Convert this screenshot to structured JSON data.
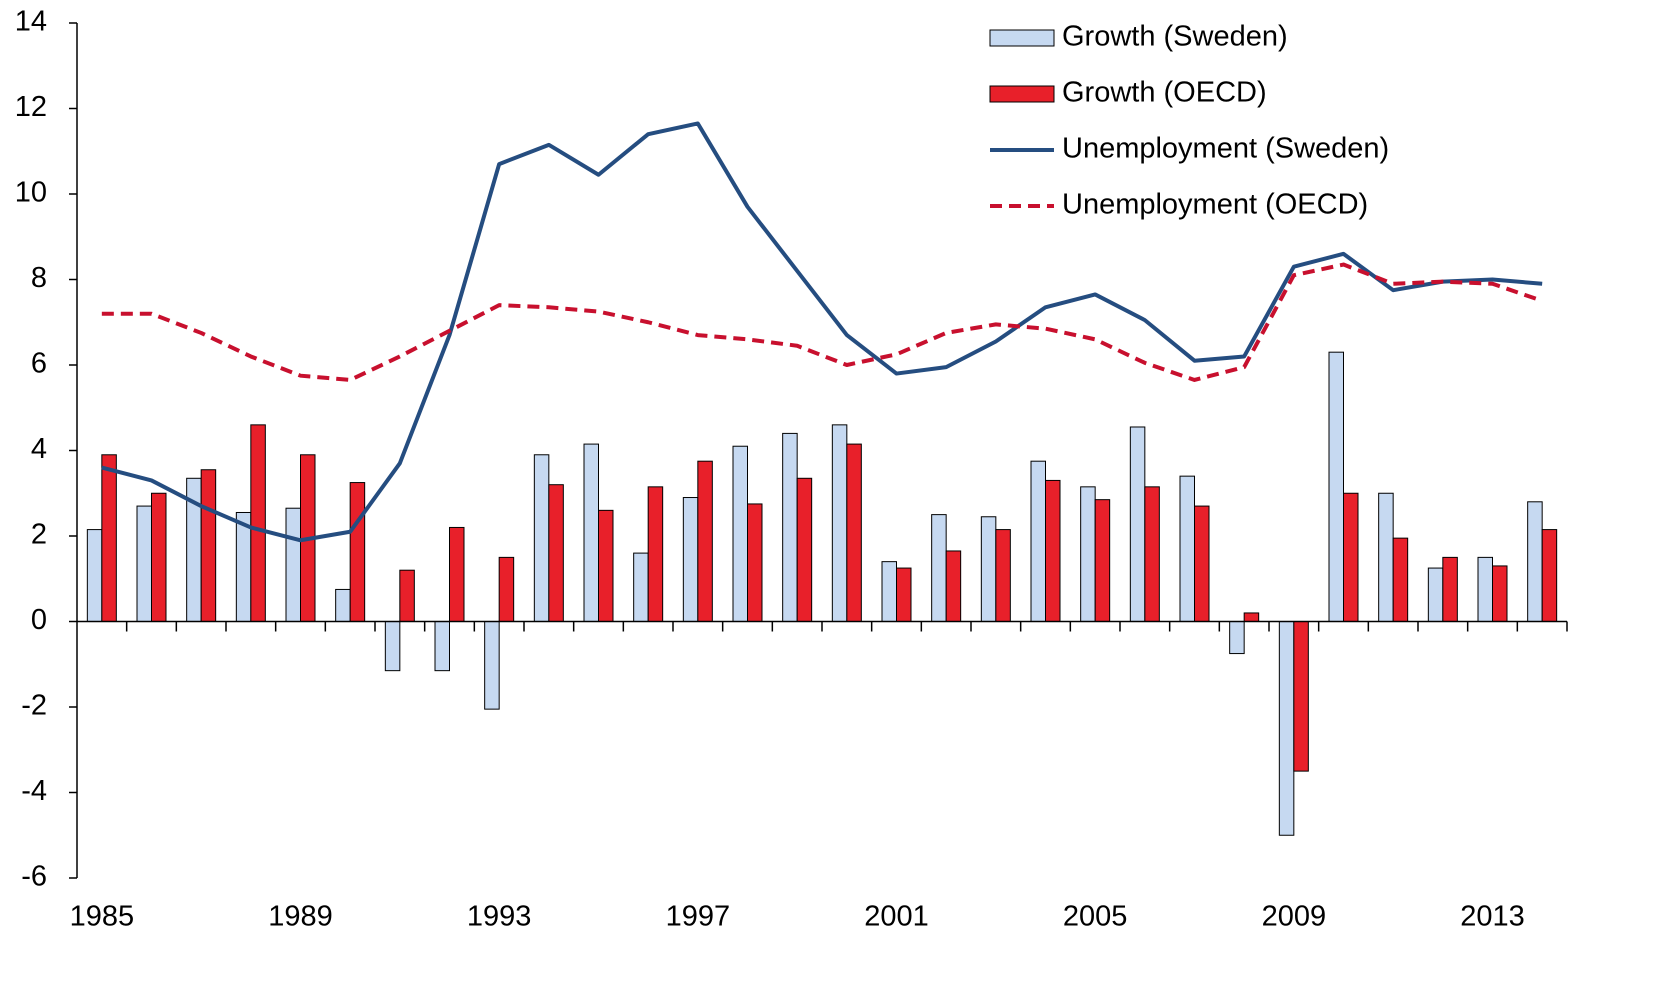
{
  "chart_data": {
    "type": "bar",
    "categories": [
      "1985",
      null,
      null,
      null,
      "1989",
      null,
      null,
      null,
      "1993",
      null,
      null,
      null,
      "1997",
      null,
      null,
      null,
      "2001",
      null,
      null,
      null,
      "2005",
      null,
      null,
      null,
      "2009",
      null,
      null,
      null,
      "2013",
      null
    ],
    "series": [
      {
        "name": "Growth (Sweden)",
        "type": "bar",
        "color": "#c6d9f1",
        "values": [
          2.15,
          2.7,
          3.35,
          2.55,
          2.65,
          0.75,
          -1.15,
          -1.15,
          -2.05,
          3.9,
          4.15,
          1.6,
          2.9,
          4.1,
          4.4,
          4.6,
          1.4,
          2.5,
          2.45,
          3.75,
          3.15,
          4.55,
          3.4,
          -0.75,
          -5.0,
          6.3,
          3.0,
          1.25,
          1.5,
          2.8
        ]
      },
      {
        "name": "Growth (OECD)",
        "type": "bar",
        "color": "#e8202a",
        "values": [
          3.9,
          3.0,
          3.55,
          4.6,
          3.9,
          3.25,
          1.2,
          2.2,
          1.5,
          3.2,
          2.6,
          3.15,
          3.75,
          2.75,
          3.35,
          4.15,
          1.25,
          1.65,
          2.15,
          3.3,
          2.85,
          3.15,
          2.7,
          0.2,
          -3.5,
          3.0,
          1.95,
          1.5,
          1.3,
          2.15
        ]
      },
      {
        "name": "Unemployment (Sweden)",
        "type": "line",
        "color": "#254d80",
        "dashed": false,
        "values": [
          3.6,
          3.3,
          2.7,
          2.2,
          1.9,
          2.1,
          3.7,
          6.7,
          10.7,
          11.15,
          10.45,
          11.4,
          11.65,
          9.7,
          8.2,
          6.7,
          5.8,
          5.95,
          6.55,
          7.35,
          7.65,
          7.05,
          6.1,
          6.2,
          8.3,
          8.6,
          7.75,
          7.95,
          8.0,
          7.9
        ]
      },
      {
        "name": "Unemployment (OECD)",
        "type": "line",
        "color": "#c8102e",
        "dashed": true,
        "values": [
          7.2,
          7.2,
          6.75,
          6.2,
          5.75,
          5.65,
          6.2,
          6.8,
          7.4,
          7.35,
          7.25,
          7.0,
          6.7,
          6.6,
          6.45,
          6.0,
          6.25,
          6.75,
          6.95,
          6.85,
          6.6,
          6.05,
          5.65,
          5.95,
          8.1,
          8.35,
          7.9,
          7.95,
          7.9,
          7.5
        ]
      }
    ],
    "ylim": [
      -6,
      14
    ],
    "yticks": [
      -6,
      -4,
      -2,
      0,
      2,
      4,
      6,
      8,
      10,
      12,
      14
    ],
    "grid": false,
    "legend": "top-right"
  }
}
